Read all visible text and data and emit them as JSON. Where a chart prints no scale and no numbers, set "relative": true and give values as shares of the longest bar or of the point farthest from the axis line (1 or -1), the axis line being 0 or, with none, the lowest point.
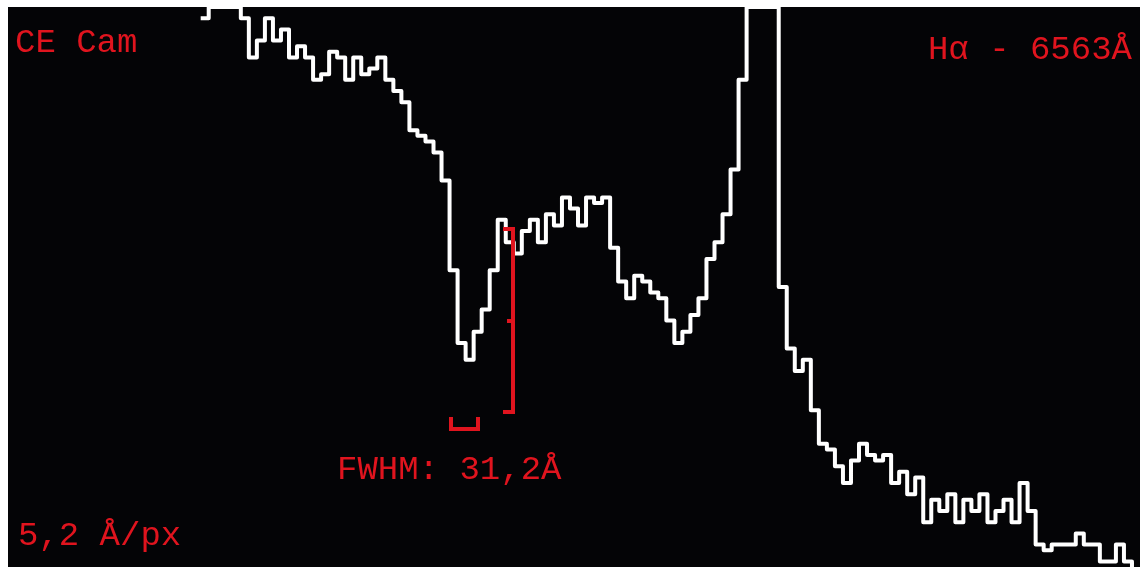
{
  "chart_data": {
    "type": "step",
    "relative": true,
    "title": "CE Cam",
    "annotations": [
      "Hα - 6563Å",
      "FWHM: 31,2Å",
      "5,2 Å/px"
    ],
    "marker": "none",
    "line_style": "solid",
    "categories": [
      null,
      null,
      null,
      null,
      null,
      null,
      null,
      null,
      null,
      null,
      null,
      null,
      null,
      null,
      null,
      null,
      null,
      null,
      null,
      null,
      null,
      null,
      null,
      null,
      null,
      null,
      null,
      null,
      null,
      null,
      null,
      null,
      null,
      null,
      null,
      null,
      null,
      null,
      null,
      null,
      null,
      null,
      null,
      null,
      null,
      null,
      null,
      null,
      null,
      null,
      null,
      null,
      null,
      null,
      null,
      null,
      null,
      null,
      null,
      null,
      null,
      null,
      null,
      null,
      null,
      null,
      null,
      null,
      null,
      null,
      null,
      null,
      null,
      null,
      null,
      null,
      null,
      null,
      null,
      null,
      null,
      null,
      null,
      null,
      null,
      null,
      null,
      null,
      null,
      null,
      null,
      null,
      null,
      null,
      null,
      null,
      null,
      null,
      null,
      null,
      null,
      null,
      null,
      null,
      null,
      null,
      null,
      null,
      null,
      null,
      null,
      null,
      null,
      null,
      null,
      null,
      null,
      null,
      null,
      null,
      null,
      null,
      null,
      null,
      null,
      null,
      null,
      null,
      null,
      null,
      null,
      null,
      null,
      null,
      null,
      null,
      null,
      null,
      null,
      null,
      null
    ],
    "series": [
      {
        "color": "#ffffff",
        "values": [
          null,
          null,
          null,
          null,
          null,
          null,
          null,
          null,
          null,
          null,
          null,
          null,
          null,
          null,
          null,
          null,
          null,
          null,
          null,
          null,
          null,
          null,
          null,
          null,
          0.98,
          1,
          1,
          1,
          1,
          0.98,
          0.91,
          0.94,
          0.98,
          0.94,
          0.96,
          0.91,
          0.93,
          0.91,
          0.87,
          0.88,
          0.92,
          0.91,
          0.87,
          0.91,
          0.88,
          0.89,
          0.91,
          0.87,
          0.85,
          0.83,
          0.78,
          0.77,
          0.76,
          0.74,
          0.69,
          0.53,
          0.4,
          0.37,
          0.42,
          0.46,
          0.53,
          0.62,
          0.58,
          0.56,
          0.6,
          0.62,
          0.58,
          0.63,
          0.61,
          0.66,
          0.64,
          0.61,
          0.66,
          0.65,
          0.66,
          0.57,
          0.51,
          0.48,
          0.52,
          0.51,
          0.49,
          0.48,
          0.44,
          0.4,
          0.42,
          0.45,
          0.48,
          0.55,
          0.58,
          0.63,
          0.71,
          0.87,
          1,
          1,
          1,
          1,
          0.5,
          0.39,
          0.35,
          0.37,
          0.28,
          0.22,
          0.21,
          0.18,
          0.15,
          0.19,
          0.22,
          0.2,
          0.19,
          0.2,
          0.15,
          0.17,
          0.13,
          0.16,
          0.08,
          0.12,
          0.1,
          0.13,
          0.08,
          0.12,
          0.1,
          0.13,
          0.08,
          0.1,
          0.12,
          0.08,
          0.15,
          0.1,
          0.04,
          0.03,
          0.04,
          0.04,
          0.04,
          0.06,
          0.04,
          0.04,
          0.01,
          0.01,
          0.04,
          0.01,
          0
        ]
      }
    ]
  }
}
